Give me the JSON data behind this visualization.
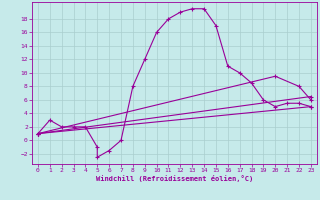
{
  "background_color": "#c6eaea",
  "line_color": "#990099",
  "grid_color": "#aacece",
  "xlabel": "Windchill (Refroidissement éolien,°C)",
  "xlim": [
    -0.5,
    23.5
  ],
  "ylim": [
    -3.5,
    20.5
  ],
  "xticks": [
    0,
    1,
    2,
    3,
    4,
    5,
    6,
    7,
    8,
    9,
    10,
    11,
    12,
    13,
    14,
    15,
    16,
    17,
    18,
    19,
    20,
    21,
    22,
    23
  ],
  "yticks": [
    -2,
    0,
    2,
    4,
    6,
    8,
    10,
    12,
    14,
    16,
    18
  ],
  "line1_x": [
    0,
    1,
    2,
    3,
    4,
    5,
    5,
    6,
    7,
    8,
    9,
    10,
    11,
    12,
    13,
    14,
    15,
    16,
    17,
    18,
    19,
    20,
    21,
    22,
    23
  ],
  "line1_y": [
    1,
    3,
    2,
    2,
    2,
    -1,
    -2.5,
    -1.5,
    0,
    8,
    12,
    16,
    18,
    19,
    19.5,
    19.5,
    17,
    11,
    10,
    8.5,
    6,
    5,
    5.5,
    5.5,
    5
  ],
  "line2_x": [
    0,
    23
  ],
  "line2_y": [
    1,
    5
  ],
  "line3_x": [
    0,
    23
  ],
  "line3_y": [
    1,
    6.5
  ],
  "line4_x": [
    0,
    20,
    22,
    23
  ],
  "line4_y": [
    1,
    9.5,
    8,
    6
  ],
  "figsize": [
    3.2,
    2.0
  ],
  "dpi": 100
}
